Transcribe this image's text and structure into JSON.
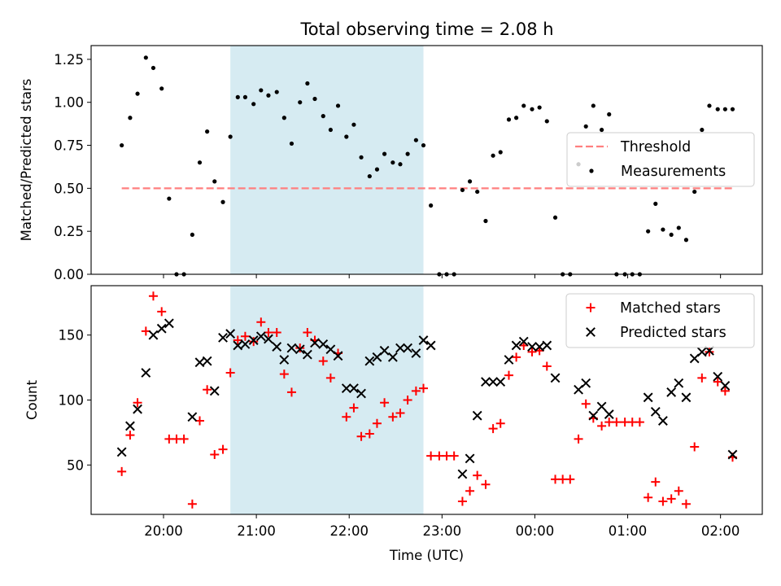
{
  "figure_title": "Total observing time = 2.08 h",
  "colors": {
    "highlight": "#add8e6",
    "threshold": "#ff7f7f",
    "measurements": "#000000",
    "matched": "#ff0000",
    "predicted": "#000000"
  },
  "chart_data": [
    {
      "type": "scatter",
      "title": "Total observing time = 2.08 h",
      "xlabel": "",
      "ylabel": "Matched/Predicted stars",
      "x_unit": "hours since 20:00 UTC",
      "xlim": [
        -0.78,
        6.45
      ],
      "ylim": [
        0,
        1.33
      ],
      "yticks": [
        0.0,
        0.25,
        0.5,
        0.75,
        1.0,
        1.25
      ],
      "ytick_labels": [
        "0.00",
        "0.25",
        "0.50",
        "0.75",
        "1.00",
        "1.25"
      ],
      "xticks": [
        0,
        1,
        2,
        3,
        4,
        5,
        6
      ],
      "xtick_labels": [],
      "highlight_span": [
        0.72,
        2.8
      ],
      "threshold": {
        "name": "Threshold",
        "y": 0.5,
        "x_range": [
          -0.45,
          6.15
        ]
      },
      "legend": [
        "Threshold",
        "Measurements"
      ],
      "legend_position": "center-right",
      "series": [
        {
          "name": "Measurements",
          "marker": "dot",
          "points": [
            [
              -0.45,
              0.75
            ],
            [
              -0.36,
              0.91
            ],
            [
              -0.28,
              1.05
            ],
            [
              -0.19,
              1.26
            ],
            [
              -0.11,
              1.2
            ],
            [
              -0.02,
              1.08
            ],
            [
              0.06,
              0.44
            ],
            [
              0.14,
              0.0
            ],
            [
              0.22,
              0.0
            ],
            [
              0.31,
              0.23
            ],
            [
              0.39,
              0.65
            ],
            [
              0.47,
              0.83
            ],
            [
              0.55,
              0.54
            ],
            [
              0.64,
              0.42
            ],
            [
              0.72,
              0.8
            ],
            [
              0.8,
              1.03
            ],
            [
              0.88,
              1.03
            ],
            [
              0.97,
              0.99
            ],
            [
              1.05,
              1.07
            ],
            [
              1.13,
              1.04
            ],
            [
              1.22,
              1.06
            ],
            [
              1.3,
              0.91
            ],
            [
              1.38,
              0.76
            ],
            [
              1.47,
              1.0
            ],
            [
              1.55,
              1.11
            ],
            [
              1.63,
              1.02
            ],
            [
              1.72,
              0.92
            ],
            [
              1.8,
              0.84
            ],
            [
              1.88,
              0.98
            ],
            [
              1.97,
              0.8
            ],
            [
              2.05,
              0.87
            ],
            [
              2.13,
              0.68
            ],
            [
              2.22,
              0.57
            ],
            [
              2.3,
              0.61
            ],
            [
              2.38,
              0.7
            ],
            [
              2.47,
              0.65
            ],
            [
              2.55,
              0.64
            ],
            [
              2.63,
              0.7
            ],
            [
              2.72,
              0.78
            ],
            [
              2.8,
              0.75
            ],
            [
              2.88,
              0.4
            ],
            [
              2.97,
              0.0
            ],
            [
              3.05,
              0.0
            ],
            [
              3.13,
              0.0
            ],
            [
              3.22,
              0.49
            ],
            [
              3.3,
              0.54
            ],
            [
              3.38,
              0.48
            ],
            [
              3.47,
              0.31
            ],
            [
              3.55,
              0.69
            ],
            [
              3.63,
              0.71
            ],
            [
              3.72,
              0.9
            ],
            [
              3.8,
              0.91
            ],
            [
              3.88,
              0.98
            ],
            [
              3.97,
              0.96
            ],
            [
              4.05,
              0.97
            ],
            [
              4.13,
              0.89
            ],
            [
              4.22,
              0.33
            ],
            [
              4.3,
              0.0
            ],
            [
              4.38,
              0.0
            ],
            [
              4.47,
              0.64
            ],
            [
              4.55,
              0.86
            ],
            [
              4.63,
              0.98
            ],
            [
              4.72,
              0.84
            ],
            [
              4.8,
              0.93
            ],
            [
              4.88,
              0.0
            ],
            [
              4.97,
              0.0
            ],
            [
              5.05,
              0.0
            ],
            [
              5.13,
              0.0
            ],
            [
              5.22,
              0.25
            ],
            [
              5.3,
              0.41
            ],
            [
              5.38,
              0.26
            ],
            [
              5.47,
              0.23
            ],
            [
              5.55,
              0.27
            ],
            [
              5.63,
              0.2
            ],
            [
              5.72,
              0.48
            ],
            [
              5.8,
              0.84
            ],
            [
              5.88,
              0.98
            ],
            [
              5.97,
              0.96
            ],
            [
              6.05,
              0.96
            ],
            [
              6.13,
              0.96
            ]
          ]
        }
      ]
    },
    {
      "type": "scatter",
      "title": "",
      "xlabel": "Time (UTC)",
      "ylabel": "Count",
      "x_unit": "hours since 20:00 UTC",
      "xlim": [
        -0.78,
        6.45
      ],
      "ylim": [
        12,
        188
      ],
      "yticks": [
        50,
        100,
        150
      ],
      "ytick_labels": [
        "50",
        "100",
        "150"
      ],
      "xticks": [
        0,
        1,
        2,
        3,
        4,
        5,
        6
      ],
      "xtick_labels": [
        "20:00",
        "21:00",
        "22:00",
        "23:00",
        "00:00",
        "01:00",
        "02:00"
      ],
      "highlight_span": [
        0.72,
        2.8
      ],
      "legend": [
        "Matched stars",
        "Predicted stars"
      ],
      "legend_position": "upper-right",
      "series": [
        {
          "name": "Matched stars",
          "marker": "plus",
          "points": [
            [
              -0.45,
              45
            ],
            [
              -0.36,
              73
            ],
            [
              -0.28,
              98
            ],
            [
              -0.19,
              153
            ],
            [
              -0.11,
              180
            ],
            [
              -0.02,
              168
            ],
            [
              0.06,
              70
            ],
            [
              0.14,
              70
            ],
            [
              0.22,
              70
            ],
            [
              0.31,
              20
            ],
            [
              0.39,
              84
            ],
            [
              0.47,
              108
            ],
            [
              0.55,
              58
            ],
            [
              0.64,
              62
            ],
            [
              0.72,
              121
            ],
            [
              0.8,
              146
            ],
            [
              0.88,
              149
            ],
            [
              0.97,
              145
            ],
            [
              1.05,
              160
            ],
            [
              1.13,
              152
            ],
            [
              1.22,
              152
            ],
            [
              1.3,
              120
            ],
            [
              1.38,
              106
            ],
            [
              1.47,
              140
            ],
            [
              1.55,
              152
            ],
            [
              1.63,
              146
            ],
            [
              1.72,
              130
            ],
            [
              1.8,
              117
            ],
            [
              1.88,
              136
            ],
            [
              1.97,
              87
            ],
            [
              2.05,
              94
            ],
            [
              2.13,
              72
            ],
            [
              2.22,
              74
            ],
            [
              2.3,
              82
            ],
            [
              2.38,
              98
            ],
            [
              2.47,
              87
            ],
            [
              2.55,
              90
            ],
            [
              2.63,
              100
            ],
            [
              2.72,
              107
            ],
            [
              2.8,
              109
            ],
            [
              2.88,
              57
            ],
            [
              2.97,
              57
            ],
            [
              3.05,
              57
            ],
            [
              3.13,
              57
            ],
            [
              3.22,
              22
            ],
            [
              3.3,
              30
            ],
            [
              3.38,
              42
            ],
            [
              3.47,
              35
            ],
            [
              3.55,
              78
            ],
            [
              3.63,
              82
            ],
            [
              3.72,
              119
            ],
            [
              3.8,
              133
            ],
            [
              3.88,
              142
            ],
            [
              3.97,
              137
            ],
            [
              4.05,
              138
            ],
            [
              4.13,
              126
            ],
            [
              4.22,
              39
            ],
            [
              4.3,
              39
            ],
            [
              4.38,
              39
            ],
            [
              4.47,
              70
            ],
            [
              4.55,
              97
            ],
            [
              4.63,
              86
            ],
            [
              4.72,
              80
            ],
            [
              4.8,
              83
            ],
            [
              4.88,
              83
            ],
            [
              4.97,
              83
            ],
            [
              5.05,
              83
            ],
            [
              5.13,
              83
            ],
            [
              5.22,
              25
            ],
            [
              5.3,
              37
            ],
            [
              5.38,
              22
            ],
            [
              5.47,
              24
            ],
            [
              5.55,
              30
            ],
            [
              5.63,
              20
            ],
            [
              5.72,
              64
            ],
            [
              5.8,
              117
            ],
            [
              5.88,
              137
            ],
            [
              5.97,
              114
            ],
            [
              6.05,
              107
            ],
            [
              6.13,
              56
            ]
          ]
        },
        {
          "name": "Predicted stars",
          "marker": "x",
          "points": [
            [
              -0.45,
              60
            ],
            [
              -0.36,
              80
            ],
            [
              -0.28,
              93
            ],
            [
              -0.19,
              121
            ],
            [
              -0.11,
              150
            ],
            [
              -0.02,
              155
            ],
            [
              0.06,
              159
            ],
            [
              0.31,
              87
            ],
            [
              0.39,
              129
            ],
            [
              0.47,
              130
            ],
            [
              0.55,
              107
            ],
            [
              0.64,
              148
            ],
            [
              0.72,
              151
            ],
            [
              0.8,
              142
            ],
            [
              0.88,
              143
            ],
            [
              0.97,
              146
            ],
            [
              1.05,
              149
            ],
            [
              1.13,
              147
            ],
            [
              1.22,
              141
            ],
            [
              1.3,
              131
            ],
            [
              1.38,
              140
            ],
            [
              1.47,
              139
            ],
            [
              1.55,
              135
            ],
            [
              1.63,
              144
            ],
            [
              1.72,
              143
            ],
            [
              1.8,
              139
            ],
            [
              1.88,
              134
            ],
            [
              1.97,
              109
            ],
            [
              2.05,
              109
            ],
            [
              2.13,
              105
            ],
            [
              2.22,
              130
            ],
            [
              2.3,
              133
            ],
            [
              2.38,
              138
            ],
            [
              2.47,
              133
            ],
            [
              2.55,
              140
            ],
            [
              2.63,
              140
            ],
            [
              2.72,
              136
            ],
            [
              2.8,
              146
            ],
            [
              2.88,
              142
            ],
            [
              3.22,
              43
            ],
            [
              3.3,
              55
            ],
            [
              3.38,
              88
            ],
            [
              3.47,
              114
            ],
            [
              3.55,
              114
            ],
            [
              3.63,
              114
            ],
            [
              3.72,
              131
            ],
            [
              3.8,
              142
            ],
            [
              3.88,
              145
            ],
            [
              3.97,
              141
            ],
            [
              4.05,
              141
            ],
            [
              4.13,
              142
            ],
            [
              4.22,
              117
            ],
            [
              4.47,
              108
            ],
            [
              4.55,
              113
            ],
            [
              4.63,
              88
            ],
            [
              4.72,
              95
            ],
            [
              4.8,
              89
            ],
            [
              5.22,
              102
            ],
            [
              5.3,
              91
            ],
            [
              5.38,
              84
            ],
            [
              5.47,
              106
            ],
            [
              5.55,
              113
            ],
            [
              5.63,
              102
            ],
            [
              5.72,
              132
            ],
            [
              5.8,
              137
            ],
            [
              5.88,
              138
            ],
            [
              5.97,
              118
            ],
            [
              6.05,
              111
            ],
            [
              6.13,
              58
            ]
          ]
        }
      ]
    }
  ]
}
